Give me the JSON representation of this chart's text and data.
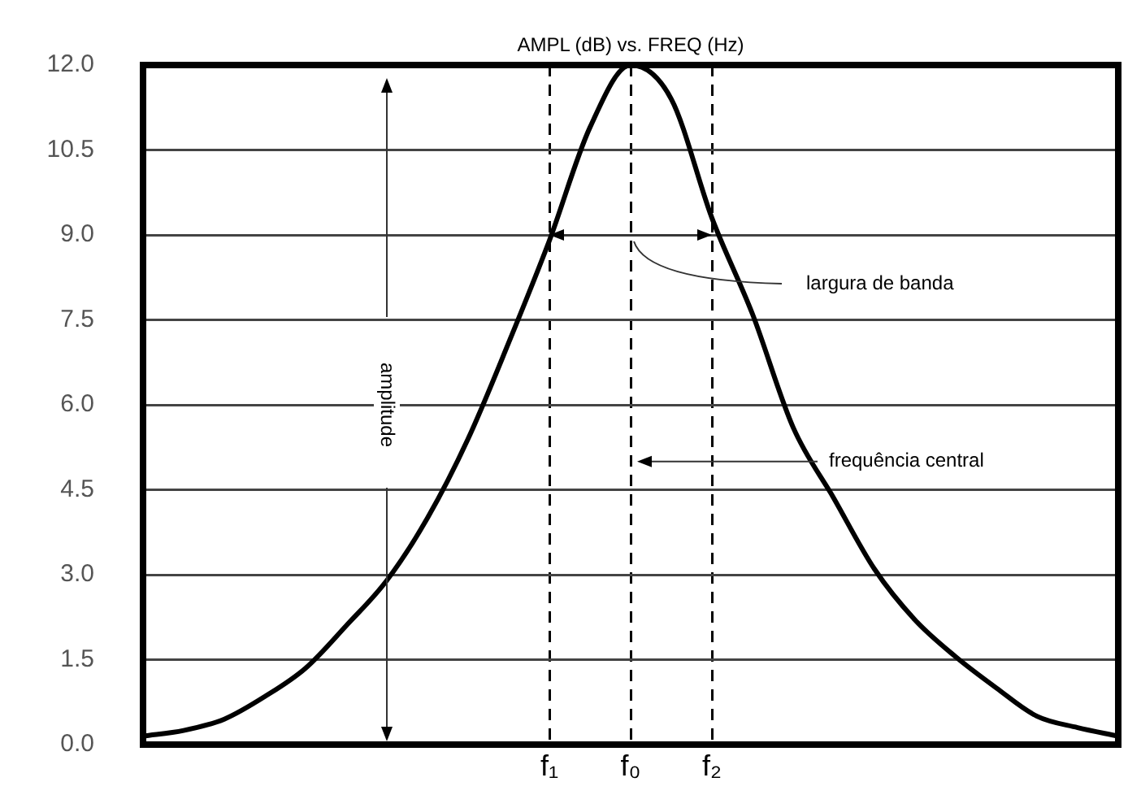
{
  "chart_data": {
    "type": "line",
    "title": "AMPL (dB) vs. FREQ (Hz)",
    "categories": [
      null,
      null,
      null,
      null,
      null,
      null,
      null,
      null,
      null,
      null,
      "f₁",
      null,
      "f₀",
      null,
      "f₂",
      null,
      null,
      null,
      null,
      null,
      null,
      null,
      null,
      null,
      null
    ],
    "series": [
      {
        "color": "#000000",
        "values": [
          0.15,
          0.25,
          0.45,
          0.85,
          1.35,
          2.1,
          2.9,
          4.0,
          5.4,
          7.1,
          8.9,
          10.9,
          12.0,
          11.4,
          9.3,
          7.6,
          5.6,
          4.35,
          3.1,
          2.2,
          1.55,
          1.0,
          0.5,
          0.3,
          0.15
        ]
      }
    ],
    "ylim": [
      0,
      12
    ],
    "yticks": [
      {
        "value": 0,
        "label": "0.0"
      },
      {
        "value": 1.5,
        "label": "1.5"
      },
      {
        "value": 3,
        "label": "3.0"
      },
      {
        "value": 4.5,
        "label": "4.5"
      },
      {
        "value": 6,
        "label": "6.0"
      },
      {
        "value": 7.5,
        "label": "7.5"
      },
      {
        "value": 9,
        "label": "9.0"
      },
      {
        "value": 10.5,
        "label": "10.5"
      },
      {
        "value": 12,
        "label": "12.0"
      }
    ],
    "annotations": [
      "amplitude",
      "largura de banda",
      "frequência central"
    ],
    "grid": true,
    "marker": "none",
    "line_style": "solid"
  }
}
